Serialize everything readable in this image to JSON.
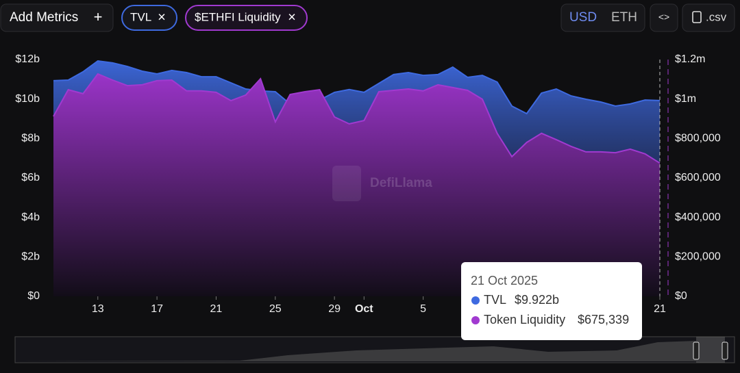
{
  "toolbar": {
    "add_metrics": "Add Metrics",
    "add_icon": "+",
    "remove_icon": "×",
    "currency": [
      "USD",
      "ETH"
    ],
    "embed": "<>",
    "csv": ".csv"
  },
  "watermark": "DefiLlama",
  "tooltip": {
    "date": "21 Oct 2025",
    "items": [
      {
        "label": "TVL",
        "value": "$9.922b"
      },
      {
        "label": "Token Liquidity",
        "value": "$675,339"
      }
    ]
  },
  "chart_data": {
    "type": "area",
    "categories": [
      null,
      null,
      null,
      "13",
      null,
      null,
      null,
      "17",
      null,
      null,
      null,
      "21",
      null,
      null,
      null,
      "25",
      null,
      null,
      null,
      "29",
      null,
      "Oct",
      null,
      null,
      null,
      "5",
      null,
      null,
      null,
      null,
      null,
      null,
      null,
      null,
      null,
      null,
      null,
      null,
      null,
      null,
      null,
      "21"
    ],
    "series": [
      {
        "name": "TVL",
        "color": "#3e6ae0",
        "values": [
          10.93,
          10.96,
          11.38,
          11.93,
          11.83,
          11.65,
          11.41,
          11.27,
          11.45,
          11.34,
          11.13,
          11.13,
          10.82,
          10.51,
          10.41,
          10.37,
          9.75,
          9.99,
          9.95,
          10.34,
          10.48,
          10.34,
          10.79,
          11.24,
          11.34,
          11.2,
          11.24,
          11.62,
          11.1,
          11.2,
          10.86,
          9.64,
          9.26,
          10.3,
          10.51,
          10.16,
          9.99,
          9.85,
          9.64,
          9.75,
          9.95,
          9.922
        ]
      },
      {
        "name": "$ETHFI Liquidity",
        "color": "#a13ad0",
        "axis": "y2",
        "values": [
          912000,
          1047000,
          1027000,
          1127000,
          1096000,
          1068000,
          1072000,
          1093000,
          1096000,
          1041000,
          1041000,
          1034000,
          992000,
          1020000,
          1103000,
          884000,
          1023000,
          1037000,
          1047000,
          909000,
          874000,
          891000,
          1037000,
          1044000,
          1051000,
          1041000,
          1072000,
          1058000,
          1044000,
          999000,
          826000,
          708000,
          780000,
          826000,
          794000,
          760000,
          732000,
          732000,
          728000,
          746000,
          722000,
          675339
        ]
      }
    ],
    "ylim": [
      0,
      12
    ],
    "yticks": [
      {
        "value": 0,
        "label": "$0"
      },
      {
        "value": 2,
        "label": "$2b"
      },
      {
        "value": 4,
        "label": "$4b"
      },
      {
        "value": 6,
        "label": "$6b"
      },
      {
        "value": 8,
        "label": "$8b"
      },
      {
        "value": 10,
        "label": "$10b"
      },
      {
        "value": 12,
        "label": "$12b"
      }
    ],
    "y2lim": [
      0,
      1200000
    ],
    "y2ticks": [
      {
        "value": 0,
        "label": "$0"
      },
      {
        "value": 200000,
        "label": "$200,000"
      },
      {
        "value": 400000,
        "label": "$400,000"
      },
      {
        "value": 600000,
        "label": "$600,000"
      },
      {
        "value": 800000,
        "label": "$800,000"
      },
      {
        "value": 1000000,
        "label": "$1m"
      },
      {
        "value": 1200000,
        "label": "$1.2m"
      }
    ]
  }
}
